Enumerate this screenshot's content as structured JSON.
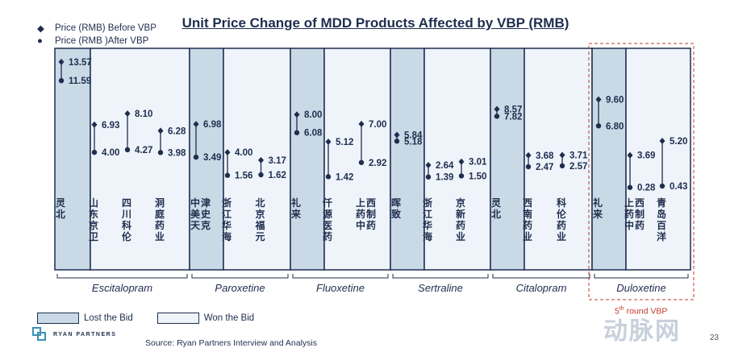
{
  "title": "Unit Price Change of MDD Products Affected by VBP (RMB)",
  "legend": {
    "before": "Price (RMB) Before VBP",
    "after": "Price (RMB )After VBP",
    "lost": "Lost the Bid",
    "won": "Won the Bid"
  },
  "source": "Source: Ryan Partners Interview and Analysis",
  "logo_text": "RYAN PARTNERS",
  "page_number": "23",
  "watermark": "动脉网",
  "vbp5_label": "round VBP",
  "vbp5_num": "5",
  "vbp5_sup": "th",
  "colors": {
    "lost_fill": "#c9d9e6",
    "won_fill": "#eef4fa",
    "border": "#1f2d4e",
    "marker": "#1f2d4e",
    "dashed": "#c0392b"
  },
  "chart_data": {
    "type": "dumbbell",
    "title": "Unit Price Change of MDD Products Affected by VBP (RMB)",
    "ylim": [
      0,
      14.5
    ],
    "groups": [
      {
        "drug": "Escitalopram",
        "companies": [
          {
            "name": "灵北",
            "before": 13.57,
            "after": 11.59,
            "bid": "lost"
          },
          {
            "name": "山东京卫",
            "before": 6.93,
            "after": 4.0,
            "bid": "won"
          },
          {
            "name": "四川科伦",
            "before": 8.1,
            "after": 4.27,
            "bid": "won"
          },
          {
            "name": "洞庭药业",
            "before": 6.28,
            "after": 3.98,
            "bid": "won"
          }
        ]
      },
      {
        "drug": "Paroxetine",
        "companies": [
          {
            "name": "中美天津史克",
            "before": 6.98,
            "after": 3.49,
            "bid": "lost"
          },
          {
            "name": "浙江华海",
            "before": 4.0,
            "after": 1.56,
            "bid": "won"
          },
          {
            "name": "北京福元",
            "before": 3.17,
            "after": 1.62,
            "bid": "won"
          }
        ]
      },
      {
        "drug": "Fluoxetine",
        "companies": [
          {
            "name": "礼来",
            "before": 8.0,
            "after": 6.08,
            "bid": "lost"
          },
          {
            "name": "仟源医药",
            "before": 5.12,
            "after": 1.42,
            "bid": "won"
          },
          {
            "name": "上药中西制药",
            "before": 7.0,
            "after": 2.92,
            "bid": "won"
          }
        ]
      },
      {
        "drug": "Sertraline",
        "companies": [
          {
            "name": "晖致",
            "before": 5.84,
            "after": 5.18,
            "bid": "lost"
          },
          {
            "name": "浙江华海",
            "before": 2.64,
            "after": 1.39,
            "bid": "won"
          },
          {
            "name": "京新药业",
            "before": 3.01,
            "after": 1.5,
            "bid": "won"
          }
        ]
      },
      {
        "drug": "Citalopram",
        "companies": [
          {
            "name": "灵北",
            "before": 8.57,
            "after": 7.82,
            "bid": "lost"
          },
          {
            "name": "西南药业",
            "before": 3.68,
            "after": 2.47,
            "bid": "won"
          },
          {
            "name": "科伦药业",
            "before": 3.71,
            "after": 2.57,
            "bid": "won"
          }
        ]
      },
      {
        "drug": "Duloxetine",
        "highlight": "5th round VBP",
        "companies": [
          {
            "name": "礼来",
            "before": 9.6,
            "after": 6.8,
            "bid": "lost"
          },
          {
            "name": "上药中西制药",
            "before": 3.69,
            "after": 0.28,
            "bid": "won"
          },
          {
            "name": "青岛百洋",
            "before": 5.2,
            "after": 0.43,
            "bid": "won"
          }
        ]
      }
    ]
  }
}
